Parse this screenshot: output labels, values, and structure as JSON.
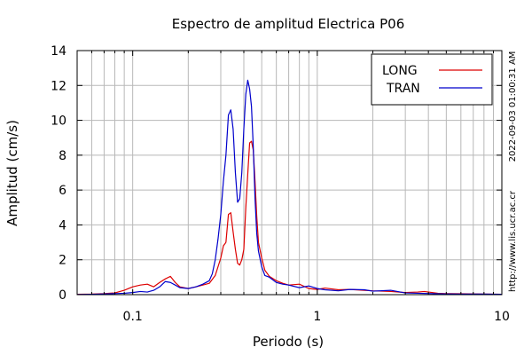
{
  "chart_data": {
    "type": "line",
    "title": "Espectro de amplitud Electrica P06",
    "xlabel": "Periodo (s)",
    "ylabel": "Amplitud (cm/s)",
    "xscale": "log",
    "xlim": [
      0.05,
      10
    ],
    "ylim": [
      0,
      14
    ],
    "x_tick_labels": [
      {
        "value": 0.1,
        "label": "0.1"
      },
      {
        "value": 1,
        "label": "1"
      },
      {
        "value": 10,
        "label": "10"
      }
    ],
    "y_ticks": [
      0,
      2,
      4,
      6,
      8,
      10,
      12,
      14
    ],
    "grid": true,
    "legend_position": "top-right",
    "side_texts": [
      "2022-09-03 01:00:31 AM",
      "http://www.lis.ucr.ac.cr"
    ],
    "series": [
      {
        "name": "LONG",
        "color": "#dd0000",
        "points": [
          [
            0.05,
            0.02
          ],
          [
            0.06,
            0.03
          ],
          [
            0.07,
            0.06
          ],
          [
            0.08,
            0.1
          ],
          [
            0.09,
            0.25
          ],
          [
            0.1,
            0.45
          ],
          [
            0.11,
            0.55
          ],
          [
            0.12,
            0.6
          ],
          [
            0.13,
            0.45
          ],
          [
            0.14,
            0.7
          ],
          [
            0.15,
            0.9
          ],
          [
            0.16,
            1.05
          ],
          [
            0.17,
            0.7
          ],
          [
            0.18,
            0.45
          ],
          [
            0.2,
            0.35
          ],
          [
            0.22,
            0.45
          ],
          [
            0.24,
            0.55
          ],
          [
            0.26,
            0.65
          ],
          [
            0.28,
            1.1
          ],
          [
            0.3,
            2.1
          ],
          [
            0.31,
            2.8
          ],
          [
            0.32,
            3.0
          ],
          [
            0.33,
            4.6
          ],
          [
            0.34,
            4.7
          ],
          [
            0.35,
            3.6
          ],
          [
            0.36,
            2.6
          ],
          [
            0.37,
            1.8
          ],
          [
            0.38,
            1.7
          ],
          [
            0.39,
            2.0
          ],
          [
            0.4,
            2.6
          ],
          [
            0.41,
            5.0
          ],
          [
            0.42,
            6.9
          ],
          [
            0.43,
            8.7
          ],
          [
            0.44,
            8.8
          ],
          [
            0.45,
            8.3
          ],
          [
            0.46,
            6.5
          ],
          [
            0.47,
            4.5
          ],
          [
            0.48,
            3.0
          ],
          [
            0.5,
            2.1
          ],
          [
            0.52,
            1.4
          ],
          [
            0.55,
            1.05
          ],
          [
            0.6,
            0.8
          ],
          [
            0.65,
            0.65
          ],
          [
            0.7,
            0.55
          ],
          [
            0.8,
            0.6
          ],
          [
            0.9,
            0.35
          ],
          [
            1.0,
            0.3
          ],
          [
            1.1,
            0.38
          ],
          [
            1.3,
            0.28
          ],
          [
            1.5,
            0.3
          ],
          [
            1.8,
            0.25
          ],
          [
            2.0,
            0.22
          ],
          [
            2.5,
            0.18
          ],
          [
            3.0,
            0.12
          ],
          [
            3.5,
            0.15
          ],
          [
            3.8,
            0.18
          ],
          [
            4.5,
            0.08
          ],
          [
            5.0,
            0.06
          ],
          [
            6.0,
            0.05
          ],
          [
            8.0,
            0.03
          ],
          [
            10.0,
            0.02
          ]
        ]
      },
      {
        "name": "TRAN",
        "color": "#0000cc",
        "points": [
          [
            0.05,
            0.01
          ],
          [
            0.06,
            0.02
          ],
          [
            0.07,
            0.04
          ],
          [
            0.08,
            0.06
          ],
          [
            0.09,
            0.08
          ],
          [
            0.1,
            0.12
          ],
          [
            0.11,
            0.18
          ],
          [
            0.12,
            0.15
          ],
          [
            0.13,
            0.25
          ],
          [
            0.14,
            0.45
          ],
          [
            0.15,
            0.75
          ],
          [
            0.16,
            0.7
          ],
          [
            0.17,
            0.55
          ],
          [
            0.18,
            0.4
          ],
          [
            0.2,
            0.35
          ],
          [
            0.22,
            0.45
          ],
          [
            0.24,
            0.6
          ],
          [
            0.26,
            0.8
          ],
          [
            0.27,
            1.2
          ],
          [
            0.28,
            2.0
          ],
          [
            0.29,
            3.2
          ],
          [
            0.3,
            4.6
          ],
          [
            0.31,
            6.5
          ],
          [
            0.32,
            8.0
          ],
          [
            0.33,
            10.3
          ],
          [
            0.34,
            10.6
          ],
          [
            0.35,
            9.5
          ],
          [
            0.36,
            7.0
          ],
          [
            0.37,
            5.3
          ],
          [
            0.38,
            5.5
          ],
          [
            0.39,
            7.0
          ],
          [
            0.4,
            9.5
          ],
          [
            0.41,
            11.5
          ],
          [
            0.42,
            12.3
          ],
          [
            0.43,
            11.8
          ],
          [
            0.44,
            10.8
          ],
          [
            0.45,
            8.5
          ],
          [
            0.46,
            5.5
          ],
          [
            0.47,
            3.5
          ],
          [
            0.48,
            2.5
          ],
          [
            0.5,
            1.6
          ],
          [
            0.52,
            1.1
          ],
          [
            0.55,
            1.0
          ],
          [
            0.6,
            0.7
          ],
          [
            0.65,
            0.6
          ],
          [
            0.7,
            0.55
          ],
          [
            0.8,
            0.4
          ],
          [
            0.9,
            0.5
          ],
          [
            1.0,
            0.35
          ],
          [
            1.1,
            0.28
          ],
          [
            1.3,
            0.22
          ],
          [
            1.5,
            0.3
          ],
          [
            1.8,
            0.28
          ],
          [
            2.0,
            0.2
          ],
          [
            2.5,
            0.25
          ],
          [
            3.0,
            0.1
          ],
          [
            3.5,
            0.08
          ],
          [
            4.5,
            0.05
          ],
          [
            5.0,
            0.04
          ],
          [
            6.0,
            0.03
          ],
          [
            8.0,
            0.03
          ],
          [
            10.0,
            0.02
          ]
        ]
      }
    ]
  }
}
